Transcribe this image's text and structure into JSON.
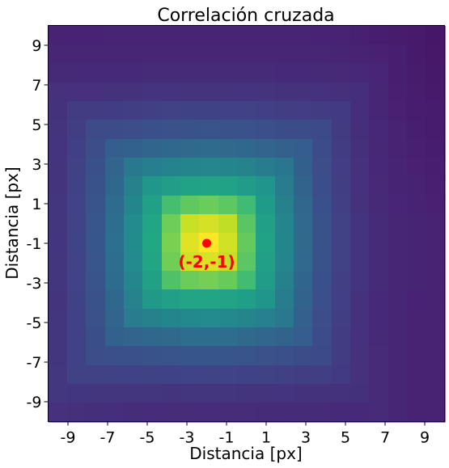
{
  "chart_data": {
    "type": "heatmap",
    "title": "Correlación cruzada",
    "xlabel": "Distancia [px]",
    "ylabel": "Distancia [px]",
    "x_range": [
      -10,
      10
    ],
    "y_range": [
      -10,
      10
    ],
    "xticks": [
      -9,
      -7,
      -5,
      -3,
      -1,
      1,
      3,
      5,
      7,
      9
    ],
    "yticks": [
      9,
      7,
      5,
      3,
      1,
      -1,
      -3,
      -5,
      -7,
      -9
    ],
    "colormap": "viridis",
    "grid": false,
    "peak": {
      "x": -2,
      "y": -1,
      "label": "(-2,-1)",
      "color": "#ff0000"
    }
  }
}
